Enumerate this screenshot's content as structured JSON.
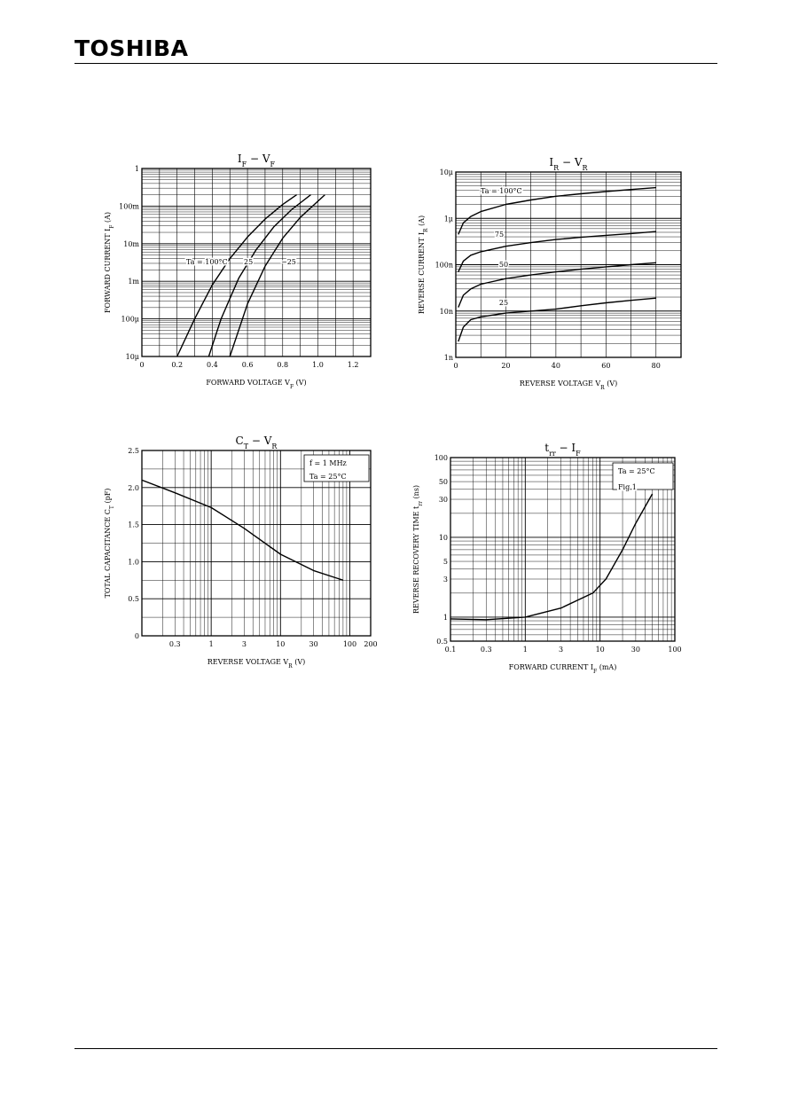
{
  "header": {
    "brand": "TOSHIBA"
  },
  "chart_data": [
    {
      "id": "if-vf",
      "type": "line",
      "title": "I",
      "title_sub1": "F",
      "title_mid": " − V",
      "title_sub2": "F",
      "xlabel": "FORWARD VOLTAGE",
      "xsym": "V",
      "xsym_sub": "F",
      "xunit": "(V)",
      "ylabel": "FORWARD CURRENT",
      "ysym": "I",
      "ysym_sub": "F",
      "yunit": "(A)",
      "x_scale": "linear",
      "y_scale": "log",
      "xlim": [
        0,
        1.3
      ],
      "ylim": [
        1e-05,
        1
      ],
      "x_ticks": [
        0,
        0.2,
        0.4,
        0.6,
        0.8,
        1.0,
        1.2
      ],
      "x_tick_labels": [
        "0",
        "0.2",
        "0.4",
        "0.6",
        "0.8",
        "1.0",
        "1.2"
      ],
      "y_ticks": [
        1e-05,
        0.0001,
        0.001,
        0.01,
        0.1,
        1
      ],
      "y_tick_labels": [
        "10μ",
        "100μ",
        "1m",
        "10m",
        "100m",
        "1"
      ],
      "grid": true,
      "annotations": [
        "Ta = 100°C",
        "25",
        "−25"
      ],
      "series": [
        {
          "name": "Ta = 100°C",
          "x": [
            0.2,
            0.3,
            0.4,
            0.5,
            0.6,
            0.7,
            0.8,
            0.88
          ],
          "y": [
            1e-05,
            0.0001,
            0.0008,
            0.004,
            0.015,
            0.045,
            0.11,
            0.2
          ]
        },
        {
          "name": "25",
          "x": [
            0.38,
            0.45,
            0.55,
            0.65,
            0.75,
            0.85,
            0.96
          ],
          "y": [
            1e-05,
            0.0001,
            0.0012,
            0.007,
            0.028,
            0.08,
            0.2
          ]
        },
        {
          "name": "−25",
          "x": [
            0.5,
            0.6,
            0.7,
            0.8,
            0.9,
            1.04
          ],
          "y": [
            1e-05,
            0.00025,
            0.0025,
            0.014,
            0.05,
            0.2
          ]
        }
      ]
    },
    {
      "id": "ir-vr",
      "type": "line",
      "title": "I",
      "title_sub1": "R",
      "title_mid": " − V",
      "title_sub2": "R",
      "xlabel": "REVERSE VOLTAGE",
      "xsym": "V",
      "xsym_sub": "R",
      "xunit": "(V)",
      "ylabel": "REVERSE CURRENT",
      "ysym": "I",
      "ysym_sub": "R",
      "yunit": "(A)",
      "x_scale": "linear",
      "y_scale": "log",
      "xlim": [
        0,
        90
      ],
      "ylim": [
        1e-09,
        1e-05
      ],
      "x_ticks": [
        0,
        20,
        40,
        60,
        80
      ],
      "x_tick_labels": [
        "0",
        "20",
        "40",
        "60",
        "80"
      ],
      "y_ticks": [
        1e-09,
        1e-08,
        1e-07,
        1e-06,
        1e-05
      ],
      "y_tick_labels": [
        "1n",
        "10n",
        "100n",
        "1μ",
        "10μ"
      ],
      "grid": true,
      "annotations": [
        "Ta = 100°C",
        "75",
        "50",
        "25"
      ],
      "series": [
        {
          "name": "Ta = 100°C",
          "x": [
            1,
            3,
            6,
            10,
            20,
            30,
            40,
            50,
            60,
            70,
            80
          ],
          "y": [
            4.5e-07,
            8e-07,
            1.1e-06,
            1.4e-06,
            2e-06,
            2.5e-06,
            3e-06,
            3.4e-06,
            3.8e-06,
            4.2e-06,
            4.6e-06
          ]
        },
        {
          "name": "75",
          "x": [
            1,
            3,
            6,
            10,
            20,
            30,
            40,
            50,
            60,
            70,
            80
          ],
          "y": [
            7e-08,
            1.2e-07,
            1.6e-07,
            1.9e-07,
            2.5e-07,
            3e-07,
            3.5e-07,
            3.9e-07,
            4.3e-07,
            4.7e-07,
            5.2e-07
          ]
        },
        {
          "name": "50",
          "x": [
            1,
            3,
            6,
            10,
            20,
            30,
            40,
            50,
            60,
            70,
            80
          ],
          "y": [
            1.2e-08,
            2.2e-08,
            3e-08,
            3.8e-08,
            5e-08,
            6e-08,
            7e-08,
            8e-08,
            9e-08,
            1e-07,
            1.1e-07
          ]
        },
        {
          "name": "25",
          "x": [
            1,
            3,
            6,
            10,
            20,
            30,
            40,
            50,
            60,
            70,
            80
          ],
          "y": [
            2.2e-09,
            4.5e-09,
            6.5e-09,
            7.5e-09,
            9e-09,
            1e-08,
            1.1e-08,
            1.3e-08,
            1.5e-08,
            1.7e-08,
            1.9e-08
          ]
        }
      ]
    },
    {
      "id": "ct-vr",
      "type": "line",
      "title": "C",
      "title_sub1": "T",
      "title_mid": " − V",
      "title_sub2": "R",
      "xlabel": "REVERSE VOLTAGE",
      "xsym": "V",
      "xsym_sub": "R",
      "xunit": "(V)",
      "ylabel": "TOTAL CAPACITANCE",
      "ysym": "C",
      "ysym_sub": "T",
      "yunit": "(pF)",
      "x_scale": "log",
      "y_scale": "linear",
      "xlim": [
        0.1,
        200
      ],
      "ylim": [
        0,
        2.5
      ],
      "x_ticks": [
        0.3,
        1,
        3,
        10,
        30,
        100,
        200
      ],
      "x_tick_labels": [
        "0.3",
        "1",
        "3",
        "10",
        "30",
        "100",
        "200"
      ],
      "y_ticks": [
        0,
        0.5,
        1.0,
        1.5,
        2.0,
        2.5
      ],
      "y_tick_labels": [
        "0",
        "0.5",
        "1.0",
        "1.5",
        "2.0",
        "2.5"
      ],
      "grid": true,
      "annotations": [
        "f = 1 MHz",
        "Ta = 25°C"
      ],
      "series": [
        {
          "name": "",
          "x": [
            0.1,
            0.3,
            1,
            3,
            10,
            30,
            80
          ],
          "y": [
            2.1,
            1.93,
            1.73,
            1.45,
            1.1,
            0.88,
            0.75
          ]
        }
      ]
    },
    {
      "id": "trr-if",
      "type": "line",
      "title": "t",
      "title_sub1": "rr",
      "title_mid": " − I",
      "title_sub2": "F",
      "xlabel": "FORWARD CURRENT",
      "xsym": "I",
      "xsym_sub": "F",
      "xunit": "(mA)",
      "ylabel": "REVERSE RECOVERY TIME",
      "ysym": "t",
      "ysym_sub": "rr",
      "yunit": "(ns)",
      "x_scale": "log",
      "y_scale": "log",
      "xlim": [
        0.1,
        100
      ],
      "ylim": [
        0.5,
        100
      ],
      "x_ticks": [
        0.1,
        0.3,
        1,
        3,
        10,
        30,
        100
      ],
      "x_tick_labels": [
        "0.1",
        "0.3",
        "1",
        "3",
        "10",
        "30",
        "100"
      ],
      "y_ticks": [
        0.5,
        1,
        3,
        5,
        10,
        30,
        50,
        100
      ],
      "y_tick_labels": [
        "0.5",
        "1",
        "3",
        "5",
        "10",
        "30",
        "50",
        "100"
      ],
      "grid": true,
      "annotations": [
        "Ta = 25°C",
        "Fig.1"
      ],
      "series": [
        {
          "name": "",
          "x": [
            0.1,
            0.3,
            1,
            3,
            8,
            12,
            20,
            30,
            50
          ],
          "y": [
            0.95,
            0.93,
            1.0,
            1.3,
            2.0,
            3.0,
            7.0,
            15.0,
            35.0
          ]
        }
      ]
    }
  ]
}
